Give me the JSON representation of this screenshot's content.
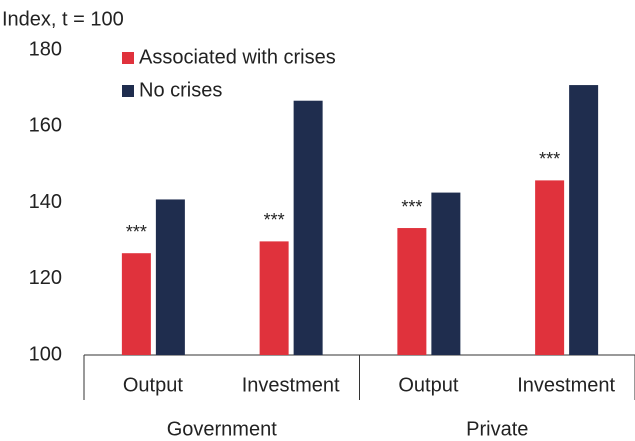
{
  "chart_data": {
    "type": "bar",
    "y_label": "Index, t = 100",
    "categories": [
      "Output",
      "Investment",
      "Output",
      "Investment"
    ],
    "groups": [
      "Government",
      "Private"
    ],
    "series": [
      {
        "name": "Associated with crises",
        "color": "#e0323c",
        "values": [
          126.7,
          129.8,
          133.3,
          145.8
        ]
      },
      {
        "name": "No crises",
        "color": "#1f2d4e",
        "values": [
          140.8,
          166.7,
          142.6,
          170.8
        ]
      }
    ],
    "annotations": [
      "***",
      "***",
      "***",
      "***"
    ],
    "ylim": [
      100,
      180
    ],
    "yticks": [
      100,
      120,
      140,
      160,
      180
    ],
    "grid": false,
    "legend": "top-left"
  }
}
